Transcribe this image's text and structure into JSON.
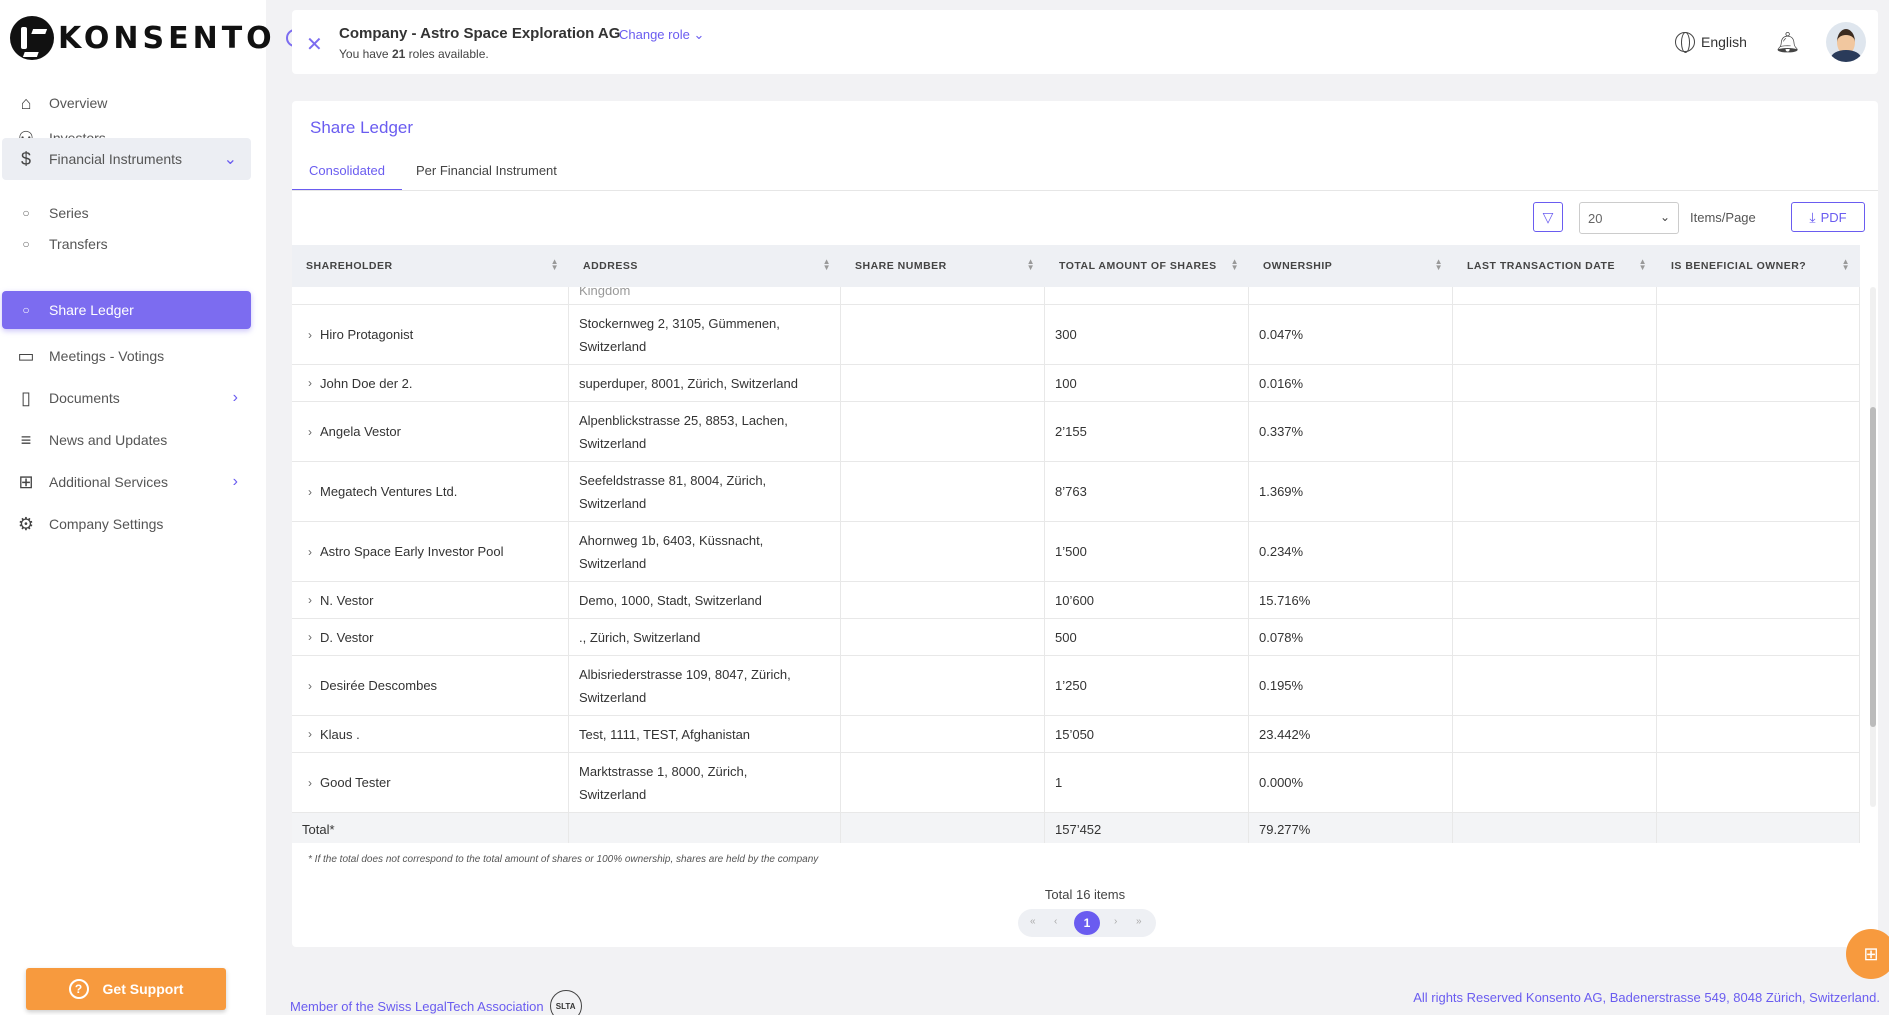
{
  "brand": {
    "logo_text": "KONSENTO"
  },
  "sidebar": {
    "items": [
      {
        "label": "Overview",
        "icon": "home-icon"
      },
      {
        "label": "Investors",
        "icon": "users-icon"
      },
      {
        "label": "Financial Instruments",
        "icon": "dollar-icon"
      },
      {
        "label": "Series",
        "icon": "circle-icon"
      },
      {
        "label": "Transfers",
        "icon": "circle-icon"
      },
      {
        "label": "Share Ledger",
        "icon": "circle-icon"
      },
      {
        "label": "Meetings - Votings",
        "icon": "video-icon"
      },
      {
        "label": "Documents",
        "icon": "document-icon"
      },
      {
        "label": "News and Updates",
        "icon": "list-icon"
      },
      {
        "label": "Additional Services",
        "icon": "grid-icon"
      },
      {
        "label": "Company Settings",
        "icon": "gear-icon"
      }
    ],
    "support_label": "Get Support"
  },
  "header": {
    "company": "Company - Astro Space Exploration AG",
    "change_role": "Change role",
    "roles_prefix": "You have",
    "roles_count": "21",
    "roles_suffix": "roles available.",
    "language": "English"
  },
  "page": {
    "title": "Share Ledger",
    "tabs": [
      "Consolidated",
      "Per Financial Instrument"
    ],
    "page_size": "20",
    "items_page_label": "Items/Page",
    "pdf_label": "PDF"
  },
  "table": {
    "columns": [
      "SHAREHOLDER",
      "ADDRESS",
      "SHARE NUMBER",
      "TOTAL AMOUNT OF SHARES",
      "OWNERSHIP",
      "LAST TRANSACTION DATE",
      "IS BENEFICIAL OWNER?"
    ],
    "partial_top_text": "Kingdom",
    "rows": [
      {
        "name": "Hiro Protagonist",
        "addr1": "Stockernweg 2, 3105, Gümmenen,",
        "addr2": "Switzerland",
        "shares": "300",
        "ownership": "0.047%"
      },
      {
        "name": "John Doe der 2.",
        "addr1": "superduper, 8001, Zürich, Switzerland",
        "addr2": "",
        "shares": "100",
        "ownership": "0.016%"
      },
      {
        "name": "Angela Vestor",
        "addr1": "Alpenblickstrasse 25, 8853, Lachen,",
        "addr2": "Switzerland",
        "shares": "2’155",
        "ownership": "0.337%"
      },
      {
        "name": "Megatech Ventures Ltd.",
        "addr1": "Seefeldstrasse 81, 8004, Zürich,",
        "addr2": "Switzerland",
        "shares": "8’763",
        "ownership": "1.369%"
      },
      {
        "name": "Astro Space Early Investor Pool",
        "addr1": "Ahornweg 1b, 6403, Küssnacht,",
        "addr2": "Switzerland",
        "shares": "1’500",
        "ownership": "0.234%"
      },
      {
        "name": "N. Vestor",
        "addr1": "Demo, 1000, Stadt, Switzerland",
        "addr2": "",
        "shares": "10’600",
        "ownership": "15.716%"
      },
      {
        "name": "D. Vestor",
        "addr1": "., Zürich, Switzerland",
        "addr2": "",
        "shares": "500",
        "ownership": "0.078%"
      },
      {
        "name": "Desirée Descombes",
        "addr1": "Albisriederstrasse 109, 8047, Zürich,",
        "addr2": "Switzerland",
        "shares": "1’250",
        "ownership": "0.195%"
      },
      {
        "name": "Klaus .",
        "addr1": "Test, 1111, TEST, Afghanistan",
        "addr2": "",
        "shares": "15’050",
        "ownership": "23.442%"
      },
      {
        "name": "Good Tester",
        "addr1": "Marktstrasse 1, 8000, Zürich,",
        "addr2": "Switzerland",
        "shares": "1",
        "ownership": "0.000%"
      }
    ],
    "total": {
      "label": "Total*",
      "shares": "157’452",
      "ownership": "79.277%"
    },
    "footnote": "* If the total does not correspond to the total amount of shares or 100% ownership, shares are held by the company",
    "total_items": "Total 16 items",
    "current_page": "1"
  },
  "footer": {
    "member": "Member of the Swiss LegalTech Association",
    "badge": "SLTA",
    "rights": "All rights Reserved Konsento AG, Badenerstrasse 549, 8048 Zürich, Switzerland."
  },
  "colors": {
    "accent": "#6a5cf0",
    "active_bg": "#7c6cf0",
    "orange": "#f79a3e"
  }
}
